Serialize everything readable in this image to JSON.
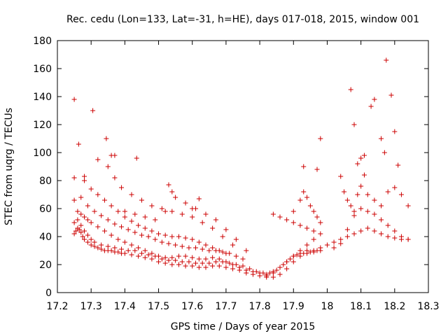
{
  "chart_data": {
    "type": "scatter",
    "title": "Rec. cedu (Lon=133, Lat=-31, h=HE), days 017-018, 2015, window 001",
    "xlabel": "GPS time / Days of year 2015",
    "ylabel": "STEC from uqrg / TECUs",
    "xlim": [
      17.2,
      18.3
    ],
    "ylim": [
      0,
      180
    ],
    "xticks": [
      17.2,
      17.3,
      17.4,
      17.5,
      17.6,
      17.7,
      17.8,
      17.9,
      18.0,
      18.1,
      18.2,
      18.3
    ],
    "xtick_labels": [
      "17.2",
      "17.3",
      "17.4",
      "17.5",
      "17.6",
      "17.7",
      "17.8",
      "17.9",
      "18",
      "18.1",
      "18.2",
      "18.3"
    ],
    "yticks": [
      0,
      20,
      40,
      60,
      80,
      100,
      120,
      140,
      160,
      180
    ],
    "ytick_labels": [
      "0",
      "20",
      "40",
      "60",
      "80",
      "100",
      "120",
      "140",
      "160",
      "180"
    ],
    "grid": false,
    "legend": "none",
    "marker": "+",
    "color": "#cc0000",
    "series": [
      {
        "x": [
          17.25,
          17.255,
          17.26,
          17.265,
          17.27,
          17.275,
          17.28,
          17.29,
          17.3,
          17.31,
          17.32,
          17.33,
          17.34,
          17.35,
          17.36,
          17.37,
          17.38,
          17.39,
          17.4,
          17.42,
          17.44,
          17.46,
          17.48,
          17.5,
          17.52,
          17.54,
          17.56,
          17.58,
          17.6,
          17.62,
          17.64,
          17.66,
          17.68,
          17.7,
          17.72,
          17.74,
          17.76,
          17.78,
          17.8,
          17.82,
          17.84,
          17.86,
          17.88,
          17.9,
          17.92,
          17.94,
          17.96,
          17.98
        ],
        "y": [
          42,
          44,
          46,
          45,
          43,
          40,
          38,
          36,
          34,
          33,
          32,
          31,
          30,
          30,
          30,
          29,
          29,
          28,
          28,
          27,
          26,
          25,
          24,
          22,
          21,
          20,
          20,
          19,
          19,
          18,
          18,
          19,
          19,
          18,
          17,
          16,
          14,
          13,
          12,
          11,
          11,
          13,
          17,
          22,
          26,
          28,
          29,
          30
        ]
      },
      {
        "x": [
          17.25,
          17.26,
          17.27,
          17.28,
          17.29,
          17.3,
          17.31,
          17.33,
          17.35,
          17.37,
          17.39,
          17.41,
          17.43,
          17.45,
          17.47,
          17.49,
          17.51,
          17.53,
          17.55,
          17.57,
          17.59,
          17.61,
          17.63,
          17.65,
          17.67,
          17.69,
          17.71,
          17.73,
          17.75,
          17.77,
          17.79,
          17.81,
          17.83,
          17.85,
          17.87,
          17.89,
          17.91,
          17.93,
          17.95,
          17.97
        ],
        "y": [
          50,
          52,
          48,
          44,
          41,
          38,
          36,
          34,
          33,
          32,
          31,
          30,
          30,
          28,
          27,
          26,
          24,
          23,
          23,
          22,
          22,
          21,
          21,
          21,
          22,
          22,
          21,
          20,
          19,
          17,
          15,
          14,
          14,
          16,
          20,
          24,
          27,
          28,
          29,
          30
        ]
      },
      {
        "x": [
          17.26,
          17.27,
          17.28,
          17.29,
          17.3,
          17.32,
          17.34,
          17.36,
          17.38,
          17.4,
          17.42,
          17.44,
          17.46,
          17.48,
          17.5,
          17.52,
          17.54,
          17.56,
          17.58,
          17.6,
          17.62,
          17.64,
          17.66,
          17.68,
          17.7,
          17.72,
          17.74,
          17.76,
          17.78,
          17.8,
          17.82,
          17.84,
          17.86,
          17.88,
          17.9,
          17.92,
          17.94,
          17.96
        ],
        "y": [
          58,
          56,
          54,
          52,
          50,
          47,
          44,
          41,
          38,
          36,
          34,
          32,
          30,
          28,
          26,
          25,
          25,
          26,
          26,
          25,
          24,
          24,
          25,
          24,
          22,
          20,
          18,
          16,
          15,
          14,
          13,
          15,
          18,
          22,
          26,
          30,
          34,
          38
        ]
      },
      {
        "x": [
          17.25,
          17.27,
          17.29,
          17.31,
          17.33,
          17.35,
          17.37,
          17.39,
          17.41,
          17.43,
          17.45,
          17.47,
          17.49,
          17.51,
          17.53,
          17.55,
          17.57,
          17.59,
          17.61,
          17.63,
          17.65,
          17.67,
          17.69,
          17.71,
          17.73,
          17.75
        ],
        "y": [
          66,
          68,
          62,
          58,
          55,
          52,
          49,
          47,
          45,
          43,
          41,
          40,
          38,
          36,
          35,
          34,
          33,
          32,
          32,
          31,
          30,
          30,
          29,
          28,
          26,
          24
        ]
      },
      {
        "x": [
          17.25,
          17.28,
          17.3,
          17.32,
          17.34,
          17.36,
          17.38,
          17.4,
          17.42,
          17.44,
          17.46,
          17.48,
          17.5,
          17.52,
          17.54,
          17.56,
          17.58,
          17.6,
          17.62,
          17.64,
          17.66,
          17.68,
          17.7
        ],
        "y": [
          82,
          80,
          74,
          70,
          66,
          62,
          58,
          54,
          51,
          48,
          46,
          44,
          42,
          41,
          40,
          40,
          39,
          38,
          36,
          34,
          32,
          30,
          28
        ]
      },
      {
        "x": [
          17.35,
          17.37,
          17.39,
          17.42,
          17.45,
          17.48,
          17.51,
          17.54,
          17.57,
          17.6,
          17.63,
          17.66,
          17.69,
          17.72
        ],
        "y": [
          90,
          82,
          75,
          70,
          66,
          62,
          60,
          58,
          56,
          54,
          50,
          46,
          40,
          34
        ]
      },
      {
        "x": [
          17.4,
          17.43,
          17.46,
          17.49,
          17.52,
          17.55,
          17.58,
          17.61,
          17.64,
          17.67,
          17.7,
          17.73,
          17.76
        ],
        "y": [
          58,
          56,
          54,
          52,
          58,
          68,
          64,
          60,
          56,
          52,
          45,
          38,
          30
        ]
      },
      {
        "x": [
          17.25,
          17.263,
          17.28,
          17.305,
          17.32,
          17.345,
          17.36,
          17.37,
          17.435,
          17.53,
          17.54,
          17.6,
          17.62
        ],
        "y": [
          138,
          106,
          83,
          130,
          95,
          110,
          98,
          98,
          96,
          77,
          72,
          60,
          67
        ]
      },
      {
        "x": [
          17.82,
          17.84,
          17.86,
          17.88,
          17.9,
          17.92,
          17.94,
          17.96,
          17.98,
          18.0,
          18.02,
          18.04,
          18.06,
          18.08,
          18.1,
          18.12,
          18.14,
          18.16,
          18.18,
          18.2,
          18.22,
          18.24
        ],
        "y": [
          12,
          14,
          18,
          22,
          26,
          28,
          30,
          30,
          32,
          34,
          36,
          38,
          40,
          42,
          44,
          46,
          44,
          42,
          40,
          39,
          38,
          38
        ]
      },
      {
        "x": [
          17.84,
          17.86,
          17.88,
          17.9,
          17.92,
          17.94,
          17.96,
          17.98,
          18.02,
          18.04,
          18.06,
          18.08,
          18.1,
          18.12,
          18.14,
          18.16,
          18.18,
          18.2,
          18.22,
          18.24
        ],
        "y": [
          56,
          54,
          52,
          50,
          48,
          46,
          44,
          42,
          32,
          35,
          45,
          55,
          60,
          58,
          56,
          52,
          48,
          44,
          40,
          38
        ]
      },
      {
        "x": [
          17.9,
          17.92,
          17.93,
          17.94,
          17.95,
          17.96,
          17.97,
          17.98,
          18.05,
          18.06,
          18.07,
          18.08,
          18.09,
          18.1,
          18.11,
          18.12,
          18.14,
          18.16,
          18.18,
          18.2,
          18.22,
          18.24
        ],
        "y": [
          58,
          66,
          72,
          68,
          62,
          58,
          54,
          50,
          72,
          66,
          62,
          58,
          70,
          76,
          84,
          70,
          66,
          62,
          72,
          75,
          70,
          62
        ]
      },
      {
        "x": [
          17.93,
          17.97,
          17.98,
          18.04,
          18.07,
          18.08,
          18.09,
          18.1,
          18.11,
          18.13,
          18.14,
          18.16,
          18.17,
          18.175,
          18.19,
          18.2,
          18.21
        ],
        "y": [
          90,
          88,
          110,
          83,
          145,
          120,
          92,
          96,
          98,
          133,
          138,
          110,
          100,
          166,
          141,
          115,
          91
        ]
      }
    ]
  }
}
